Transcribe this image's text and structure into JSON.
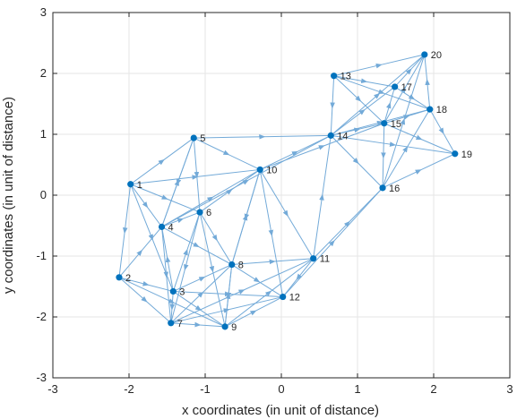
{
  "chart_data": {
    "type": "scatter",
    "title": "",
    "xlabel": "x coordinates (in unit of distance)",
    "ylabel": "y coordinates (in unit of distance)",
    "xlim": [
      -3,
      3
    ],
    "ylim": [
      -3,
      3
    ],
    "xticks": [
      -3,
      -2,
      -1,
      0,
      1,
      2,
      3
    ],
    "yticks": [
      -3,
      -2,
      -1,
      0,
      1,
      2,
      3
    ],
    "grid": true,
    "colors": {
      "node": "#0072BD",
      "edge": "#73AAD8",
      "grid": "#E6E6E6",
      "axis": "#262626"
    },
    "nodes": [
      {
        "id": "1",
        "x": -1.98,
        "y": 0.18
      },
      {
        "id": "2",
        "x": -2.13,
        "y": -1.35
      },
      {
        "id": "3",
        "x": -1.42,
        "y": -1.58
      },
      {
        "id": "4",
        "x": -1.57,
        "y": -0.52
      },
      {
        "id": "5",
        "x": -1.15,
        "y": 0.94
      },
      {
        "id": "6",
        "x": -1.07,
        "y": -0.28
      },
      {
        "id": "7",
        "x": -1.45,
        "y": -2.1
      },
      {
        "id": "8",
        "x": -0.65,
        "y": -1.14
      },
      {
        "id": "9",
        "x": -0.74,
        "y": -2.16
      },
      {
        "id": "10",
        "x": -0.28,
        "y": 0.42
      },
      {
        "id": "11",
        "x": 0.42,
        "y": -1.04
      },
      {
        "id": "12",
        "x": 0.02,
        "y": -1.67
      },
      {
        "id": "13",
        "x": 0.69,
        "y": 1.96
      },
      {
        "id": "14",
        "x": 0.65,
        "y": 0.98
      },
      {
        "id": "15",
        "x": 1.35,
        "y": 1.18
      },
      {
        "id": "16",
        "x": 1.33,
        "y": 0.12
      },
      {
        "id": "17",
        "x": 1.49,
        "y": 1.78
      },
      {
        "id": "18",
        "x": 1.95,
        "y": 1.41
      },
      {
        "id": "19",
        "x": 2.28,
        "y": 0.68
      },
      {
        "id": "20",
        "x": 1.88,
        "y": 2.31
      }
    ],
    "edges": [
      [
        "1",
        "4"
      ],
      [
        "1",
        "2"
      ],
      [
        "1",
        "5"
      ],
      [
        "1",
        "6"
      ],
      [
        "1",
        "10"
      ],
      [
        "1",
        "3"
      ],
      [
        "2",
        "4"
      ],
      [
        "2",
        "3"
      ],
      [
        "2",
        "7"
      ],
      [
        "2",
        "9"
      ],
      [
        "3",
        "4"
      ],
      [
        "3",
        "7"
      ],
      [
        "3",
        "9"
      ],
      [
        "3",
        "12"
      ],
      [
        "3",
        "8"
      ],
      [
        "3",
        "6"
      ],
      [
        "4",
        "5"
      ],
      [
        "4",
        "6"
      ],
      [
        "4",
        "10"
      ],
      [
        "4",
        "8"
      ],
      [
        "4",
        "7"
      ],
      [
        "4",
        "14"
      ],
      [
        "5",
        "10"
      ],
      [
        "5",
        "14"
      ],
      [
        "5",
        "6"
      ],
      [
        "5",
        "4"
      ],
      [
        "6",
        "8"
      ],
      [
        "6",
        "10"
      ],
      [
        "6",
        "7"
      ],
      [
        "6",
        "9"
      ],
      [
        "7",
        "9"
      ],
      [
        "7",
        "12"
      ],
      [
        "7",
        "8"
      ],
      [
        "7",
        "11"
      ],
      [
        "8",
        "12"
      ],
      [
        "8",
        "11"
      ],
      [
        "8",
        "9"
      ],
      [
        "8",
        "10"
      ],
      [
        "9",
        "12"
      ],
      [
        "9",
        "11"
      ],
      [
        "9",
        "8"
      ],
      [
        "10",
        "14"
      ],
      [
        "10",
        "11"
      ],
      [
        "10",
        "15"
      ],
      [
        "10",
        "12"
      ],
      [
        "10",
        "8"
      ],
      [
        "11",
        "16"
      ],
      [
        "11",
        "12"
      ],
      [
        "11",
        "14"
      ],
      [
        "12",
        "16"
      ],
      [
        "13",
        "17"
      ],
      [
        "13",
        "15"
      ],
      [
        "13",
        "18"
      ],
      [
        "13",
        "20"
      ],
      [
        "13",
        "14"
      ],
      [
        "14",
        "15"
      ],
      [
        "14",
        "17"
      ],
      [
        "14",
        "16"
      ],
      [
        "14",
        "18"
      ],
      [
        "14",
        "20"
      ],
      [
        "14",
        "19"
      ],
      [
        "15",
        "17"
      ],
      [
        "15",
        "18"
      ],
      [
        "15",
        "16"
      ],
      [
        "15",
        "20"
      ],
      [
        "15",
        "19"
      ],
      [
        "16",
        "18"
      ],
      [
        "16",
        "19"
      ],
      [
        "16",
        "20"
      ],
      [
        "17",
        "20"
      ],
      [
        "17",
        "18"
      ],
      [
        "18",
        "20"
      ],
      [
        "18",
        "19"
      ]
    ]
  }
}
